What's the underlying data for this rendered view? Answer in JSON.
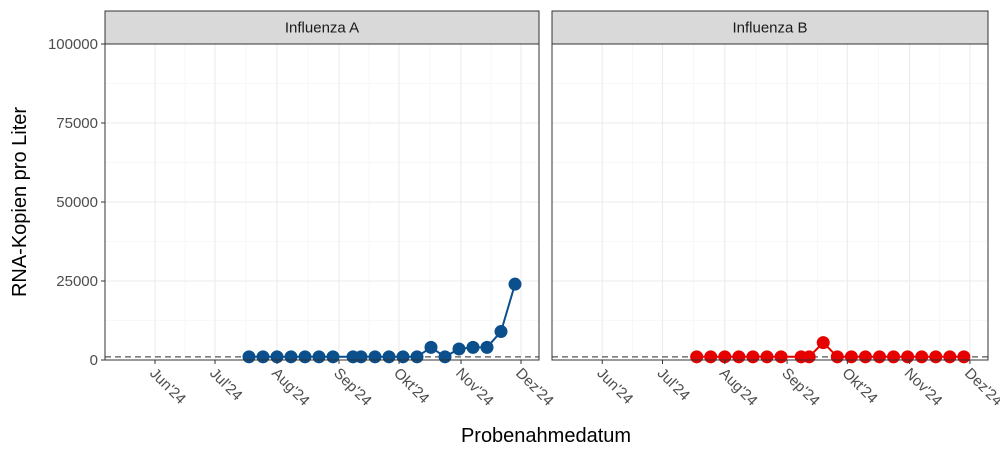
{
  "chart_data": {
    "type": "line",
    "xlabel": "Probenahmedatum",
    "ylabel": "RNA-Kopien pro Liter",
    "ylim": [
      0,
      100000
    ],
    "y_ticks": [
      0,
      25000,
      50000,
      75000,
      100000
    ],
    "y_tick_labels": [
      "0",
      "25000",
      "50000",
      "75000",
      "100000"
    ],
    "xlim": [
      "2024-05-07",
      "2024-12-10"
    ],
    "x_ticks": [
      "2024-06-01",
      "2024-07-01",
      "2024-08-01",
      "2024-09-01",
      "2024-10-01",
      "2024-11-01",
      "2024-12-01"
    ],
    "x_tick_labels": [
      "Jun'24",
      "Jul'24",
      "Aug'24",
      "Sep'24",
      "Okt'24",
      "Nov'24",
      "Dez'24"
    ],
    "threshold_line": 1000,
    "grid": true,
    "panels": [
      {
        "title": "Influenza A",
        "color": "#0b4f8c",
        "x": [
          "2024-07-18",
          "2024-07-25",
          "2024-08-01",
          "2024-08-08",
          "2024-08-15",
          "2024-08-22",
          "2024-08-29",
          "2024-09-08",
          "2024-09-12",
          "2024-09-19",
          "2024-09-26",
          "2024-10-03",
          "2024-10-10",
          "2024-10-17",
          "2024-10-24",
          "2024-10-31",
          "2024-11-07",
          "2024-11-14",
          "2024-11-21",
          "2024-11-28"
        ],
        "y": [
          1000,
          1000,
          1000,
          1000,
          1000,
          1000,
          1000,
          1000,
          1000,
          1000,
          1000,
          1000,
          1000,
          4000,
          1000,
          3500,
          4000,
          4000,
          9000,
          24000
        ]
      },
      {
        "title": "Influenza B",
        "color": "#e60000",
        "x": [
          "2024-07-18",
          "2024-07-25",
          "2024-08-01",
          "2024-08-08",
          "2024-08-15",
          "2024-08-22",
          "2024-08-29",
          "2024-09-08",
          "2024-09-12",
          "2024-09-19",
          "2024-09-26",
          "2024-10-03",
          "2024-10-10",
          "2024-10-17",
          "2024-10-24",
          "2024-10-31",
          "2024-11-07",
          "2024-11-14",
          "2024-11-21",
          "2024-11-28"
        ],
        "y": [
          1000,
          1000,
          1000,
          1000,
          1000,
          1000,
          1000,
          1000,
          1000,
          5500,
          1000,
          1000,
          1000,
          1000,
          1000,
          1000,
          1000,
          1000,
          1000,
          1000
        ]
      }
    ]
  }
}
